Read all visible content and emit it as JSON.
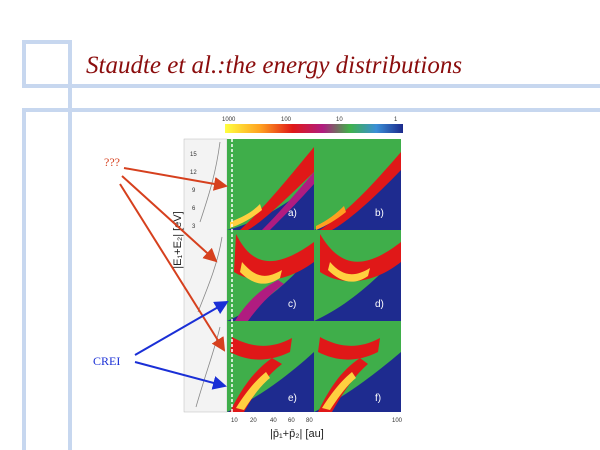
{
  "slide": {
    "title": "Staudte et al.:the energy distributions",
    "annotation_question": "???",
    "annotation_crei": "CREI"
  },
  "figure": {
    "colorbar_ticks": [
      "1000",
      "100",
      "10",
      "1"
    ],
    "y_axis_label": "|E₁+E₂| [eV]",
    "x_axis_label": "|p̄₁+p̄₂| [au]",
    "y_ticks": [
      "15",
      "12",
      "9",
      "6",
      "3"
    ],
    "x_ticks": [
      "10",
      "20",
      "40",
      "60",
      "80",
      "100"
    ],
    "panel_labels": [
      "a)",
      "b)",
      "c)",
      "d)",
      "e)",
      "f)"
    ]
  },
  "colors": {
    "title": "#8b0d0d",
    "question_arrows": "#d6401e",
    "crei_arrows": "#1a2fd6",
    "decoration": "#c7d7ef"
  }
}
